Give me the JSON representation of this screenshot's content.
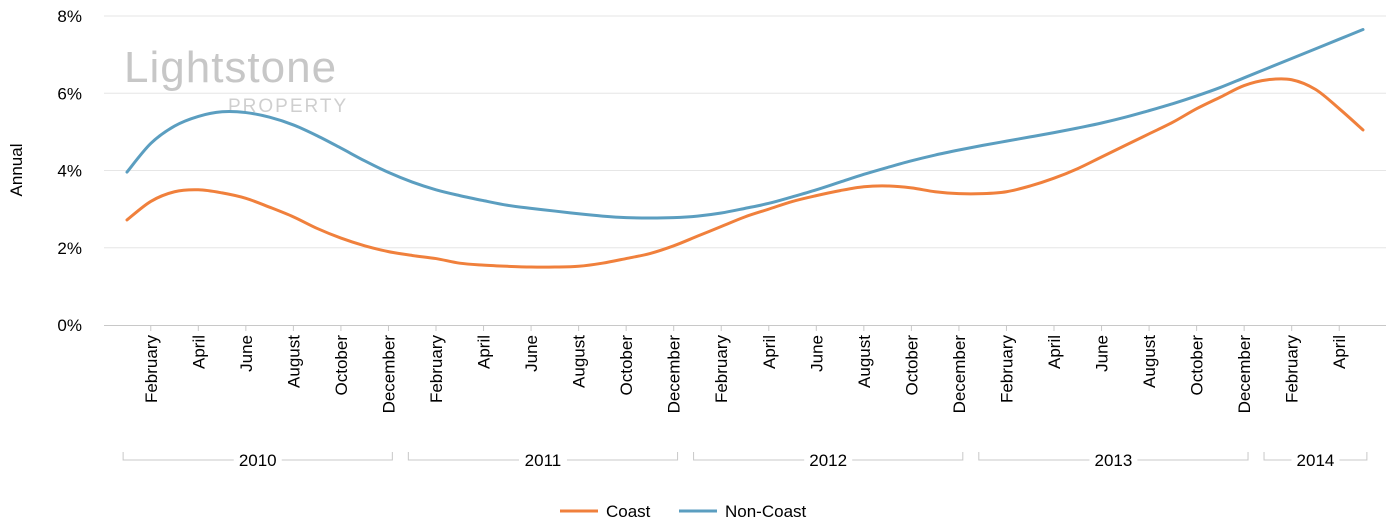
{
  "watermark": {
    "brand": "Lightstone",
    "sub": "PROPERTY"
  },
  "colors": {
    "coast": "#f0803c",
    "noncoast": "#5b9ec0",
    "grid": "#e6e6e6",
    "axis": "#c8c8c8",
    "watermark": "#c7c7c7"
  },
  "chart_data": {
    "type": "line",
    "ylabel": "Annual",
    "ylim": [
      0,
      8
    ],
    "y_ticks": [
      "0%",
      "2%",
      "4%",
      "6%",
      "8%"
    ],
    "y_tick_values": [
      0,
      2,
      4,
      6,
      8
    ],
    "x": [
      "2010-01",
      "2010-02",
      "2010-03",
      "2010-04",
      "2010-05",
      "2010-06",
      "2010-07",
      "2010-08",
      "2010-09",
      "2010-10",
      "2010-11",
      "2010-12",
      "2011-01",
      "2011-02",
      "2011-03",
      "2011-04",
      "2011-05",
      "2011-06",
      "2011-07",
      "2011-08",
      "2011-09",
      "2011-10",
      "2011-11",
      "2011-12",
      "2012-01",
      "2012-02",
      "2012-03",
      "2012-04",
      "2012-05",
      "2012-06",
      "2012-07",
      "2012-08",
      "2012-09",
      "2012-10",
      "2012-11",
      "2012-12",
      "2013-01",
      "2013-02",
      "2013-03",
      "2013-04",
      "2013-05",
      "2013-06",
      "2013-07",
      "2013-08",
      "2013-09",
      "2013-10",
      "2013-11",
      "2013-12",
      "2014-01",
      "2014-02",
      "2014-03",
      "2014-04",
      "2014-05"
    ],
    "x_tick_labels": [
      {
        "label": "February",
        "month": "2010-02"
      },
      {
        "label": "April",
        "month": "2010-04"
      },
      {
        "label": "June",
        "month": "2010-06"
      },
      {
        "label": "August",
        "month": "2010-08"
      },
      {
        "label": "October",
        "month": "2010-10"
      },
      {
        "label": "December",
        "month": "2010-12"
      },
      {
        "label": "February",
        "month": "2011-02"
      },
      {
        "label": "April",
        "month": "2011-04"
      },
      {
        "label": "June",
        "month": "2011-06"
      },
      {
        "label": "August",
        "month": "2011-08"
      },
      {
        "label": "October",
        "month": "2011-10"
      },
      {
        "label": "December",
        "month": "2011-12"
      },
      {
        "label": "February",
        "month": "2012-02"
      },
      {
        "label": "April",
        "month": "2012-04"
      },
      {
        "label": "June",
        "month": "2012-06"
      },
      {
        "label": "August",
        "month": "2012-08"
      },
      {
        "label": "October",
        "month": "2012-10"
      },
      {
        "label": "December",
        "month": "2012-12"
      },
      {
        "label": "February",
        "month": "2013-02"
      },
      {
        "label": "April",
        "month": "2013-04"
      },
      {
        "label": "June",
        "month": "2013-06"
      },
      {
        "label": "August",
        "month": "2013-08"
      },
      {
        "label": "October",
        "month": "2013-10"
      },
      {
        "label": "December",
        "month": "2013-12"
      },
      {
        "label": "February",
        "month": "2014-02"
      },
      {
        "label": "April",
        "month": "2014-04"
      }
    ],
    "years": [
      {
        "label": "2010",
        "from": "2010-01",
        "to": "2010-12"
      },
      {
        "label": "2011",
        "from": "2011-01",
        "to": "2011-12"
      },
      {
        "label": "2012",
        "from": "2012-01",
        "to": "2012-12"
      },
      {
        "label": "2013",
        "from": "2013-01",
        "to": "2013-12"
      },
      {
        "label": "2014",
        "from": "2014-01",
        "to": "2014-05"
      }
    ],
    "series": [
      {
        "name": "Coast",
        "color": "#f0803c",
        "values": [
          2.72,
          3.2,
          3.45,
          3.5,
          3.42,
          3.28,
          3.05,
          2.8,
          2.5,
          2.25,
          2.05,
          1.9,
          1.8,
          1.72,
          1.6,
          1.55,
          1.52,
          1.5,
          1.5,
          1.52,
          1.6,
          1.72,
          1.85,
          2.05,
          2.3,
          2.55,
          2.8,
          3.0,
          3.2,
          3.35,
          3.48,
          3.58,
          3.6,
          3.55,
          3.45,
          3.4,
          3.4,
          3.45,
          3.6,
          3.8,
          4.05,
          4.35,
          4.65,
          4.95,
          5.25,
          5.6,
          5.9,
          6.2,
          6.35,
          6.35,
          6.1,
          5.6,
          5.05
        ]
      },
      {
        "name": "Non-Coast",
        "color": "#5b9ec0",
        "values": [
          3.96,
          4.7,
          5.15,
          5.4,
          5.52,
          5.5,
          5.38,
          5.18,
          4.9,
          4.58,
          4.25,
          3.95,
          3.7,
          3.5,
          3.35,
          3.22,
          3.1,
          3.02,
          2.95,
          2.88,
          2.82,
          2.78,
          2.77,
          2.78,
          2.82,
          2.9,
          3.02,
          3.15,
          3.32,
          3.5,
          3.7,
          3.9,
          4.08,
          4.25,
          4.4,
          4.53,
          4.65,
          4.76,
          4.87,
          4.98,
          5.1,
          5.23,
          5.38,
          5.55,
          5.73,
          5.93,
          6.15,
          6.4,
          6.65,
          6.9,
          7.15,
          7.4,
          7.65
        ]
      }
    ],
    "legend": "bottom-center",
    "grid": true
  }
}
